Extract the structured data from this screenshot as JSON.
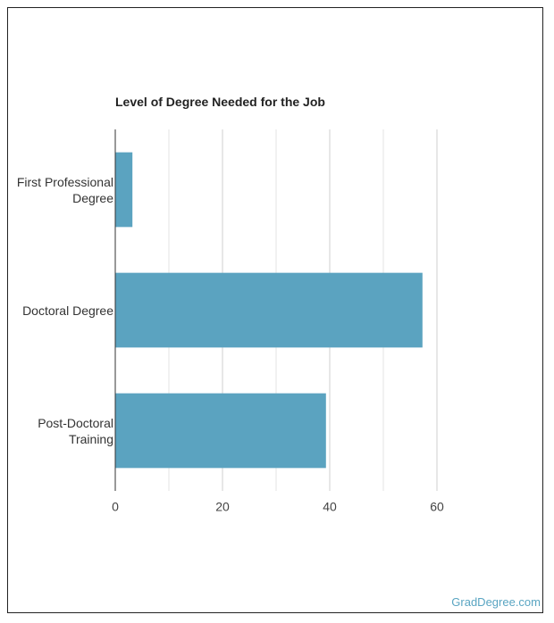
{
  "chart_data": {
    "type": "bar",
    "orientation": "horizontal",
    "title": "Level of Degree Needed for the Job",
    "categories": [
      "First Professional Degree",
      "Doctoral Degree",
      "Post-Doctoral Training"
    ],
    "values": [
      3.2,
      57.3,
      39.3
    ],
    "color": "#5ba3c0",
    "xlim": [
      0,
      60
    ],
    "xticks": [
      0,
      20,
      40,
      60
    ],
    "minor_xticks": [
      10,
      30,
      50
    ],
    "grid": true,
    "source": "GradDegree.com"
  }
}
